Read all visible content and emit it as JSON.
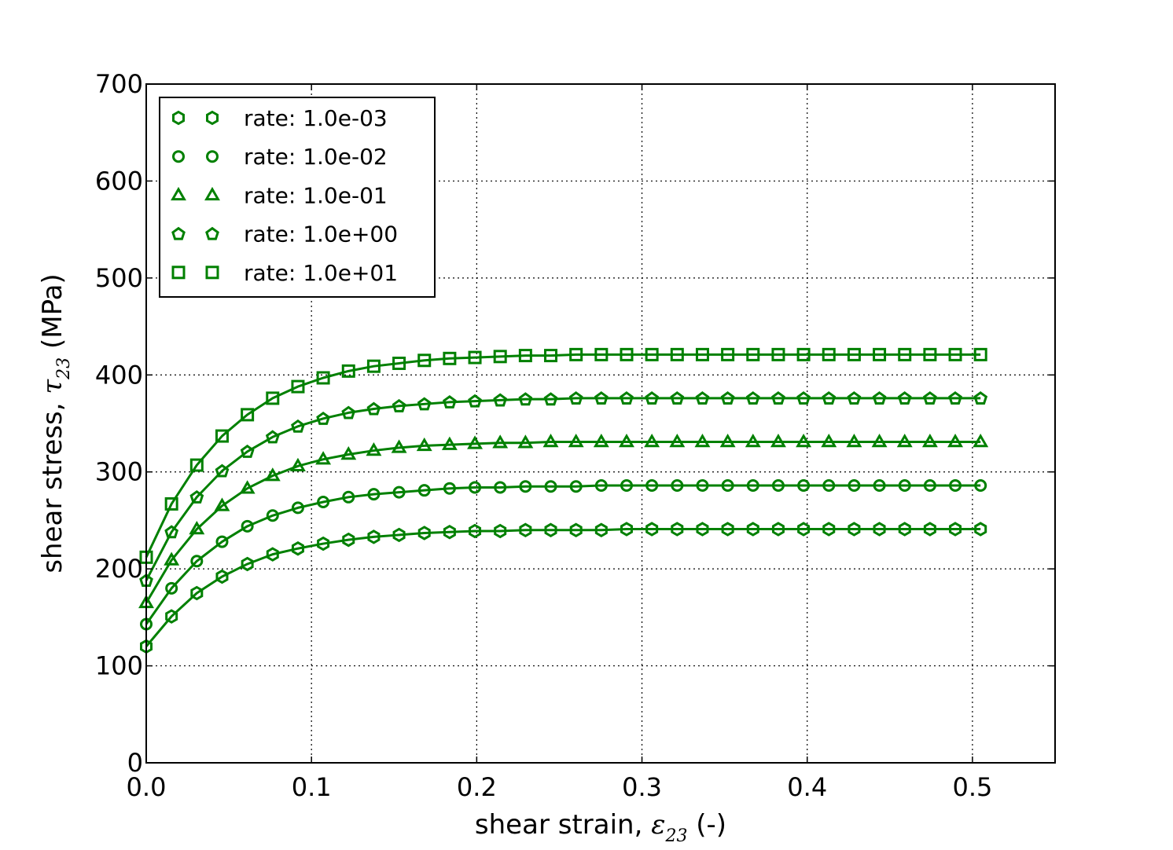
{
  "chart_data": {
    "type": "line",
    "title": "",
    "xlabel_prefix": "shear strain, ",
    "xlabel_symbol": "ε",
    "xlabel_sub": "23",
    "xlabel_suffix": " (-)",
    "ylabel_prefix": "shear stress, ",
    "ylabel_symbol": "τ",
    "ylabel_sub": "23",
    "ylabel_suffix": " (MPa)",
    "xlim": [
      0,
      0.55
    ],
    "ylim": [
      0,
      700
    ],
    "xticks": [
      0.0,
      0.1,
      0.2,
      0.3,
      0.4,
      0.5
    ],
    "xticklabels": [
      "0.0",
      "0.1",
      "0.2",
      "0.3",
      "0.4",
      "0.5"
    ],
    "yticks": [
      0,
      100,
      200,
      300,
      400,
      500,
      600,
      700
    ],
    "yticklabels": [
      "0",
      "100",
      "200",
      "300",
      "400",
      "500",
      "600",
      "700"
    ],
    "grid": true,
    "legend_position": "top-left",
    "color": "#008000",
    "x": [
      0.0,
      0.0153,
      0.0306,
      0.0459,
      0.0612,
      0.0765,
      0.0918,
      0.1071,
      0.1224,
      0.1377,
      0.153,
      0.1683,
      0.1836,
      0.1989,
      0.2142,
      0.2295,
      0.2448,
      0.2601,
      0.2754,
      0.2907,
      0.306,
      0.3213,
      0.3366,
      0.3519,
      0.3672,
      0.3825,
      0.3978,
      0.4131,
      0.4284,
      0.4437,
      0.459,
      0.4743,
      0.4896,
      0.5049
    ],
    "series": [
      {
        "name": "rate: 1.0e-03",
        "marker": "hexagon",
        "values": [
          120,
          151,
          175,
          192,
          205,
          215,
          221,
          226,
          230,
          233,
          235,
          237,
          238,
          239,
          239,
          240,
          240,
          240,
          240,
          241,
          241,
          241,
          241,
          241,
          241,
          241,
          241,
          241,
          241,
          241,
          241,
          241,
          241,
          241
        ]
      },
      {
        "name": "rate: 1.0e-02",
        "marker": "circle",
        "values": [
          143,
          180,
          208,
          228,
          244,
          255,
          263,
          269,
          274,
          277,
          279,
          281,
          283,
          284,
          284,
          285,
          285,
          285,
          286,
          286,
          286,
          286,
          286,
          286,
          286,
          286,
          286,
          286,
          286,
          286,
          286,
          286,
          286,
          286
        ]
      },
      {
        "name": "rate: 1.0e-01",
        "marker": "triangle",
        "values": [
          165,
          209,
          241,
          265,
          283,
          296,
          306,
          313,
          318,
          322,
          325,
          327,
          328,
          329,
          330,
          330,
          331,
          331,
          331,
          331,
          331,
          331,
          331,
          331,
          331,
          331,
          331,
          331,
          331,
          331,
          331,
          331,
          331,
          331
        ]
      },
      {
        "name": "rate: 1.0e+00",
        "marker": "pentagon",
        "values": [
          188,
          238,
          274,
          301,
          321,
          336,
          347,
          355,
          361,
          365,
          368,
          370,
          372,
          373,
          374,
          375,
          375,
          376,
          376,
          376,
          376,
          376,
          376,
          376,
          376,
          376,
          376,
          376,
          376,
          376,
          376,
          376,
          376,
          376
        ]
      },
      {
        "name": "rate: 1.0e+01",
        "marker": "square",
        "values": [
          212,
          267,
          307,
          337,
          359,
          376,
          388,
          397,
          404,
          409,
          412,
          415,
          417,
          418,
          419,
          420,
          420,
          421,
          421,
          421,
          421,
          421,
          421,
          421,
          421,
          421,
          421,
          421,
          421,
          421,
          421,
          421,
          421,
          421
        ]
      }
    ]
  }
}
